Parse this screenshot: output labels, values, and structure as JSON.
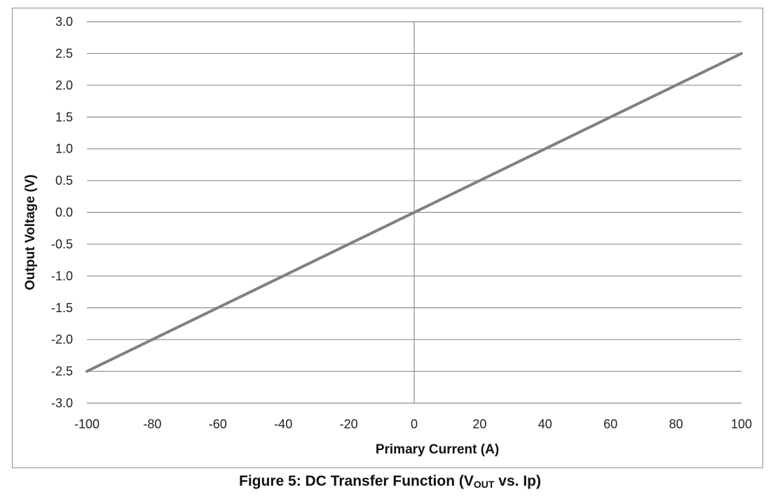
{
  "chart_data": {
    "type": "line",
    "xlabel": "Primary Current (A)",
    "ylabel": "Output Voltage (V)",
    "xlim": [
      -100,
      100
    ],
    "ylim": [
      -3.0,
      3.0
    ],
    "xticks": [
      "-100",
      "-80",
      "-60",
      "-40",
      "-20",
      "0",
      "20",
      "40",
      "60",
      "80",
      "100"
    ],
    "yticks": [
      "3.0",
      "2.5",
      "2.0",
      "1.5",
      "1.0",
      "0.5",
      "0.0",
      "-0.5",
      "-1.0",
      "-1.5",
      "-2.0",
      "-2.5",
      "-3.0"
    ],
    "grid": true,
    "series": [
      {
        "x": [
          -100,
          100
        ],
        "y": [
          -2.5,
          2.5
        ]
      }
    ],
    "colors": {
      "line": "#808080",
      "grid": "#8c8c8c"
    }
  },
  "caption": {
    "prefix": "Figure 5: DC Transfer Function (V",
    "subscript": "OUT",
    "suffix": " vs. Ip)"
  }
}
